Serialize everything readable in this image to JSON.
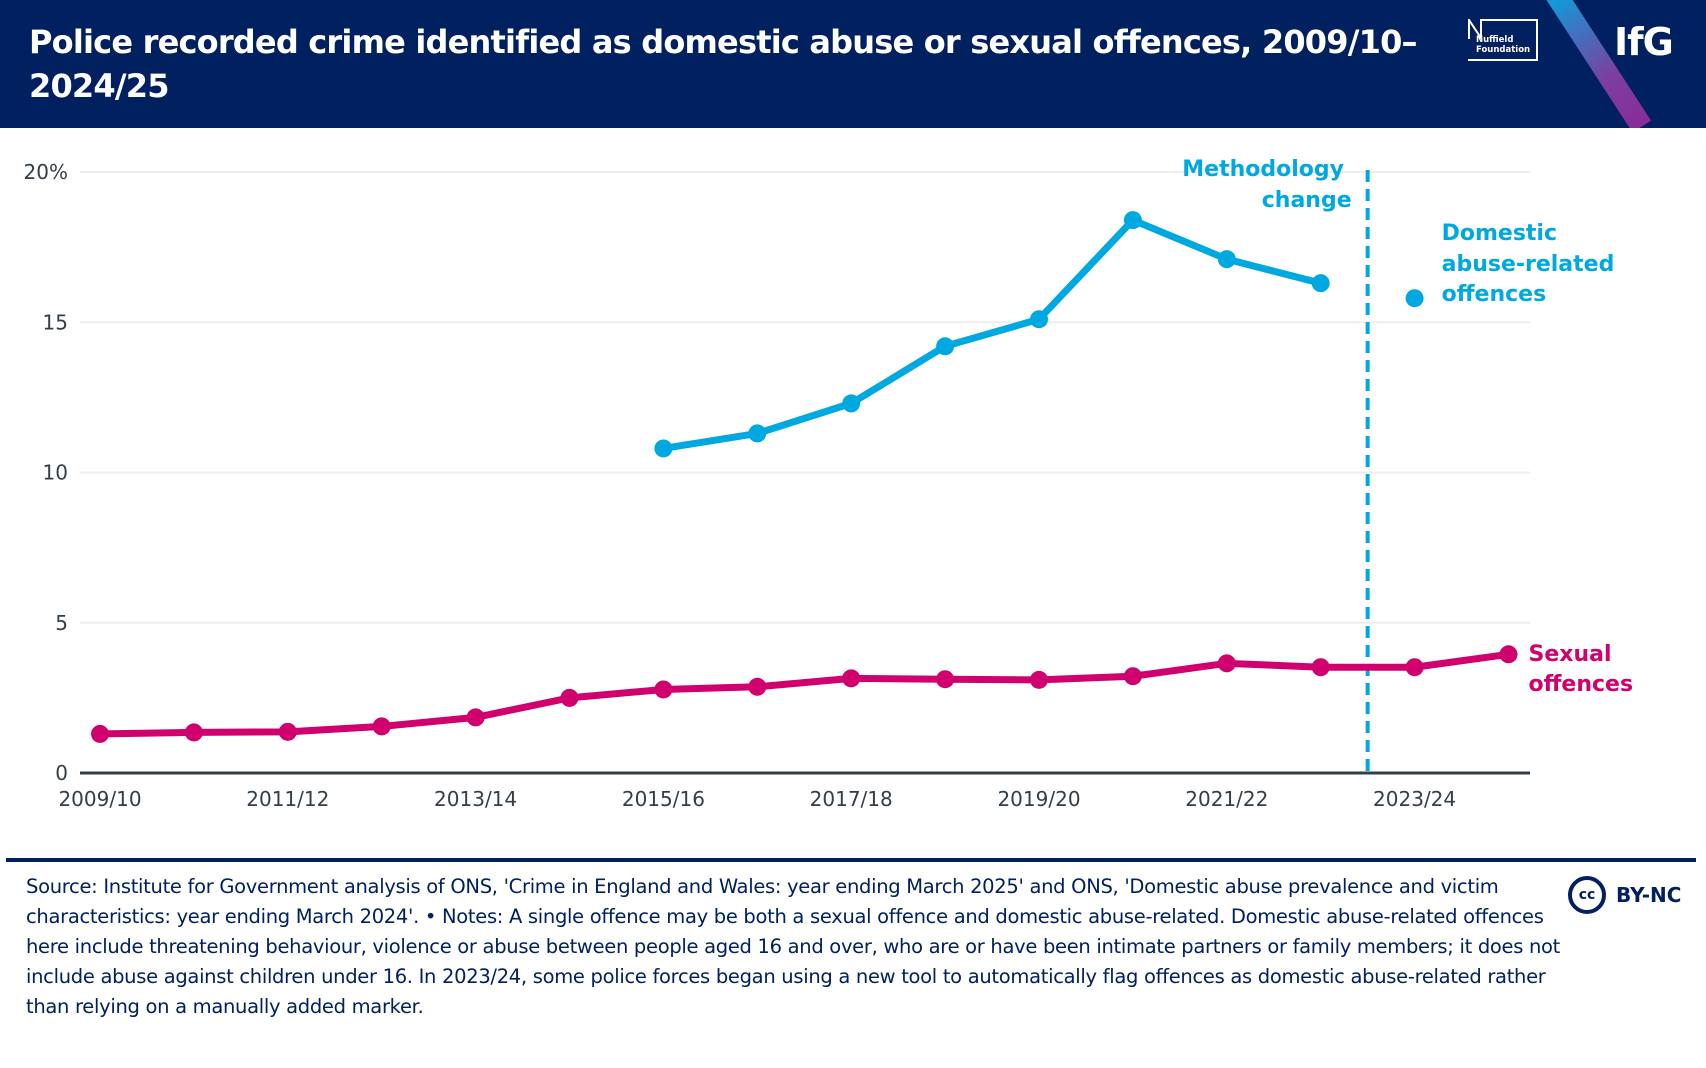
{
  "header": {
    "title": "Police recorded crime identified as domestic abuse or sexual offences, 2009/10–2024/25",
    "partner_logo": "Nuffield Foundation",
    "partner_logo_line1": "Nuffield",
    "partner_logo_line2": "Foundation",
    "brand_logo": "IfG"
  },
  "colors": {
    "header_bg": "#002060",
    "domestic": "#00a8e1",
    "sexual": "#d0006f",
    "axis": "#333e48",
    "grid": "#eeeeee",
    "footer_text": "#002060"
  },
  "chart_data": {
    "type": "line",
    "title": "Police recorded crime identified as domestic abuse or sexual offences, 2009/10–2024/25",
    "xlabel": "",
    "ylabel": "",
    "x": [
      "2009/10",
      "2010/11",
      "2011/12",
      "2012/13",
      "2013/14",
      "2014/15",
      "2015/16",
      "2016/17",
      "2017/18",
      "2018/19",
      "2019/20",
      "2020/21",
      "2021/22",
      "2022/23",
      "2023/24",
      "2024/25"
    ],
    "x_tick_labels": [
      "2009/10",
      "2011/12",
      "2013/14",
      "2015/16",
      "2017/18",
      "2019/20",
      "2021/22",
      "2023/24"
    ],
    "y_ticks": [
      0,
      5,
      10,
      15,
      20
    ],
    "y_tick_labels": [
      "0",
      "5",
      "10",
      "15",
      "20%"
    ],
    "ylim": [
      0,
      20
    ],
    "grid": true,
    "series": [
      {
        "name": "Domestic abuse-related offences",
        "label_lines": [
          "Domestic",
          "abuse-related",
          "offences"
        ],
        "color": "#00a8e1",
        "values": [
          null,
          null,
          null,
          null,
          null,
          null,
          10.8,
          11.3,
          12.3,
          14.2,
          15.1,
          18.4,
          17.1,
          16.3,
          null,
          null
        ],
        "isolated_points": [
          {
            "x": "2023/24",
            "y": 15.8
          }
        ]
      },
      {
        "name": "Sexual offences",
        "label_lines": [
          "Sexual",
          "offences"
        ],
        "color": "#d0006f",
        "values": [
          1.3,
          1.35,
          1.37,
          1.55,
          1.85,
          2.5,
          2.78,
          2.87,
          3.15,
          3.12,
          3.1,
          3.22,
          3.65,
          3.52,
          3.52,
          3.95
        ]
      }
    ],
    "annotations": [
      {
        "text_lines": [
          "Methodology",
          "change"
        ],
        "type": "vertical-dashed-line",
        "between": [
          "2022/23",
          "2023/24"
        ]
      }
    ],
    "legend": "inline-labels-right"
  },
  "footer": {
    "text": "Source: Institute for Government analysis of ONS, 'Crime in England and Wales: year ending March 2025' and ONS, 'Domestic abuse prevalence and victim characteristics: year ending March 2024'. • Notes: A single offence may be both a sexual offence and domestic abuse-related. Domestic abuse-related offences here include threatening behaviour, violence or abuse between people aged 16 and over, who are or have been intimate partners or family members; it does not include abuse against children under 16. In 2023/24, some police forces began using a new tool to automatically flag offences as domestic abuse-related rather than relying on a manually added marker.",
    "license_icon": "cc",
    "license": "BY-NC"
  }
}
